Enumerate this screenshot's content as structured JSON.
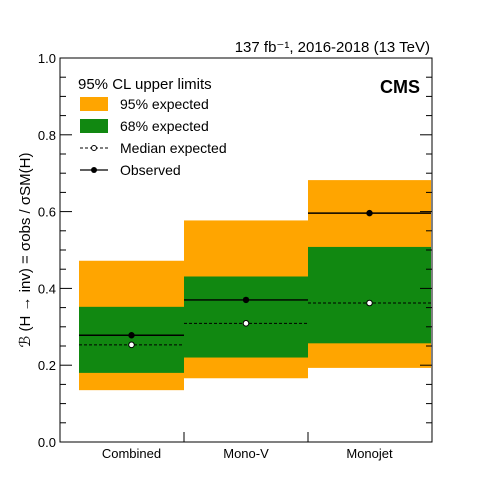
{
  "chart_data": {
    "type": "bar",
    "header": "137 fb⁻¹, 2016-2018 (13 TeV)",
    "experiment": "CMS",
    "ylabel": "ℬ (H → inv) = σobs / σSM(H)",
    "ylim": [
      0,
      1.0
    ],
    "yticks": [
      "0.0",
      "0.2",
      "0.4",
      "0.6",
      "0.8",
      "1.0"
    ],
    "categories": [
      "Combined",
      "Mono-V",
      "Monojet"
    ],
    "legend": {
      "title": "95% CL upper limits",
      "band95": "95% expected",
      "band68": "68% expected",
      "median": "Median expected",
      "observed": "Observed"
    },
    "colors": {
      "band95": "#ffa500",
      "band68": "#118811",
      "line": "#000000"
    },
    "series": [
      {
        "name": "Observed",
        "values": [
          0.278,
          0.37,
          0.596
        ]
      },
      {
        "name": "Median expected",
        "values": [
          0.253,
          0.309,
          0.362
        ]
      },
      {
        "name": "68% expected",
        "low": [
          0.18,
          0.22,
          0.257
        ],
        "high": [
          0.352,
          0.431,
          0.508
        ]
      },
      {
        "name": "95% expected",
        "low": [
          0.135,
          0.166,
          0.193
        ],
        "high": [
          0.472,
          0.577,
          0.682
        ]
      }
    ]
  }
}
